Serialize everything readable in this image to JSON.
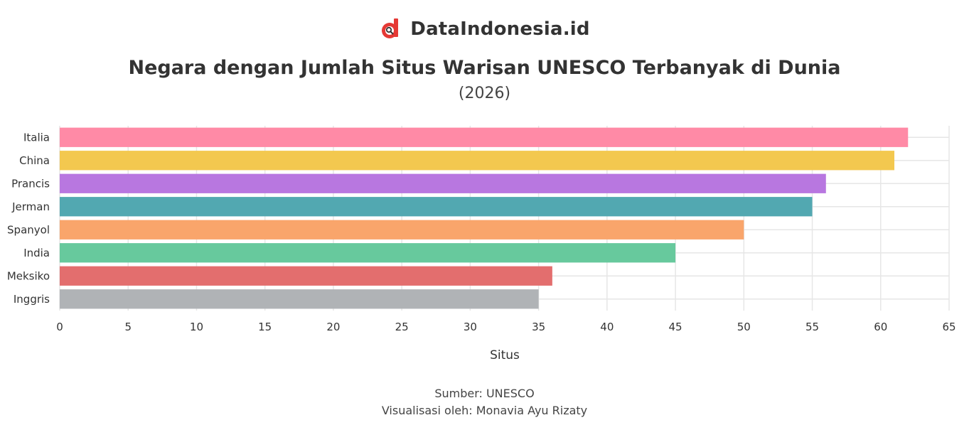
{
  "brand": {
    "name": "DataIndonesia.id",
    "logo_icon": "dataindonesia-logo-icon",
    "logo_color": "#e53935"
  },
  "chart_data": {
    "type": "bar",
    "orientation": "horizontal",
    "title": "Negara dengan Jumlah Situs Warisan UNESCO Terbanyak di Dunia",
    "subtitle": "(2026)",
    "xlabel": "Situs",
    "ylabel": "",
    "xlim": [
      0,
      65
    ],
    "xticks": [
      0,
      5,
      10,
      15,
      20,
      25,
      30,
      35,
      40,
      45,
      50,
      55,
      60,
      65
    ],
    "grid": true,
    "categories": [
      "Italia",
      "China",
      "Prancis",
      "Jerman",
      "Spanyol",
      "India",
      "Meksiko",
      "Inggris"
    ],
    "values": [
      62,
      61,
      56,
      55,
      50,
      45,
      36,
      35
    ],
    "colors": [
      "#ff8aa6",
      "#f3c84f",
      "#b877e0",
      "#52a8b1",
      "#f9a56b",
      "#67c99d",
      "#e36e6e",
      "#b0b3b6"
    ]
  },
  "footer": {
    "source": "Sumber: UNESCO",
    "credit": "Visualisasi oleh: Monavia Ayu Rizaty"
  }
}
